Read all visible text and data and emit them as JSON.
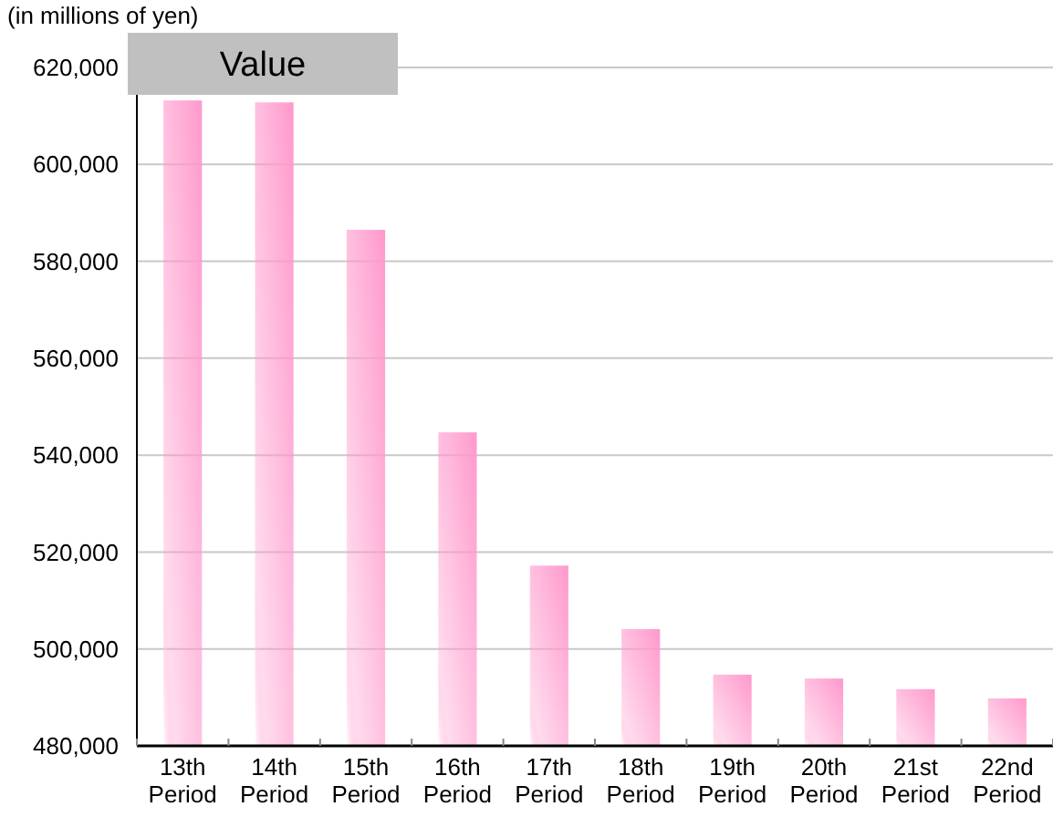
{
  "chart_data": {
    "type": "bar",
    "title": "Value",
    "ylabel": "(in millions of yen)",
    "categories": [
      "13th Period",
      "14th Period",
      "15th Period",
      "16th Period",
      "17th Period",
      "18th Period",
      "19th Period",
      "20th Period",
      "21st Period",
      "22nd Period"
    ],
    "values": [
      613200,
      612800,
      586500,
      544700,
      517200,
      504100,
      494700,
      493900,
      491700,
      489800
    ],
    "color": "#ff99cc",
    "ylim": [
      480000,
      620000
    ],
    "yticks": [
      {
        "value": 480000,
        "label": "480,000"
      },
      {
        "value": 500000,
        "label": "500,000"
      },
      {
        "value": 520000,
        "label": "520,000"
      },
      {
        "value": 540000,
        "label": "540,000"
      },
      {
        "value": 560000,
        "label": "560,000"
      },
      {
        "value": 580000,
        "label": "580,000"
      },
      {
        "value": 600000,
        "label": "600,000"
      },
      {
        "value": 620000,
        "label": "620,000"
      }
    ],
    "grid": "y"
  }
}
